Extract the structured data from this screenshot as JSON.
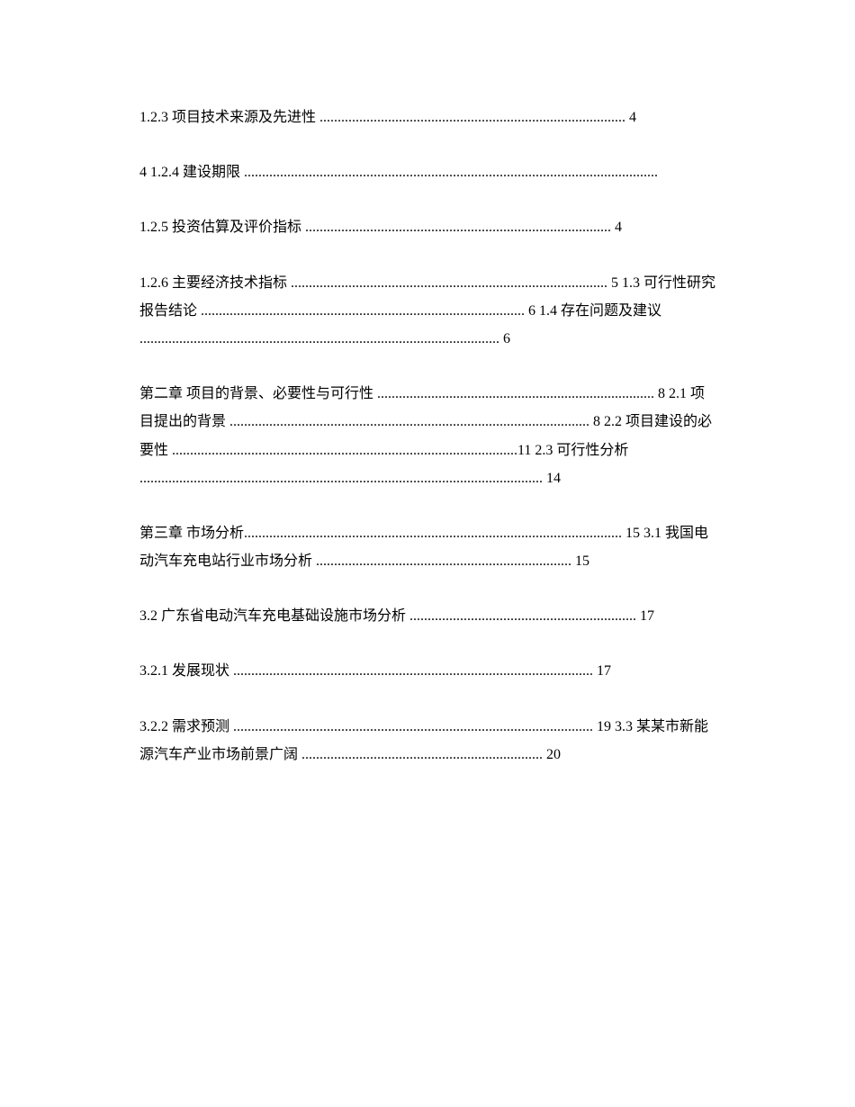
{
  "entries": [
    {
      "text": "1.2.3 项目技术来源及先进性 ..................................................................................... 4"
    },
    {
      "text": "4 1.2.4 建设期限 ..................................................................................................................."
    },
    {
      "text": "1.2.5 投资估算及评价指标 ..................................................................................... 4"
    },
    {
      "text": "1.2.6 主要经济技术指标 ........................................................................................ 5 1.3 可行性研究报告结论 .......................................................................................... 6 1.4 存在问题及建议 .................................................................................................... 6"
    },
    {
      "text": "第二章 项目的背景、必要性与可行性 ............................................................................. 8 2.1 项目提出的背景 .................................................................................................... 8 2.2 项目建设的必要性 ................................................................................................11 2.3 可行性分析 ................................................................................................................ 14"
    },
    {
      "text": "第三章 市场分析......................................................................................................... 15 3.1 我国电动汽车充电站行业市场分析 ....................................................................... 15"
    },
    {
      "text": "3.2 广东省电动汽车充电基础设施市场分析 ............................................................... 17"
    },
    {
      "text": "3.2.1 发展现状 .................................................................................................... 17"
    },
    {
      "text": "3.2.2 需求预测 .................................................................................................... 19 3.3 某某市新能源汽车产业市场前景广阔 ................................................................... 20"
    }
  ]
}
